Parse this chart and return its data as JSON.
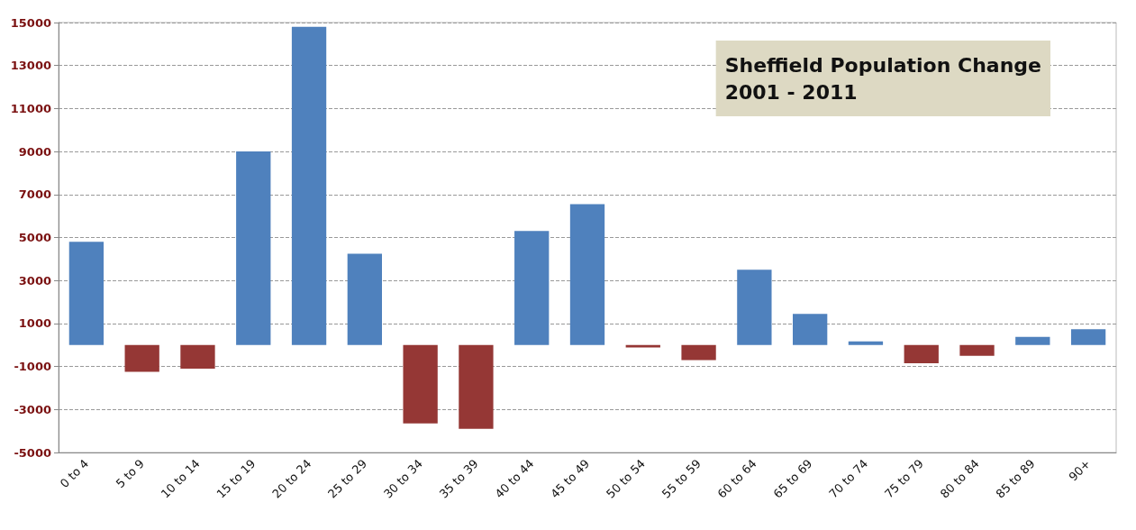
{
  "chart_data": {
    "type": "bar",
    "title": "Sheffield Population Change\n2001 - 2011",
    "categories": [
      "0 to 4",
      "5 to 9",
      "10 to 14",
      "15 to 19",
      "20 to 24",
      "25 to 29",
      "30 to 34",
      "35 to 39",
      "40 to 44",
      "45 to 49",
      "50 to 54",
      "55 to 59",
      "60 to 64",
      "65 to 69",
      "70 to 74",
      "75 to 79",
      "80 to 84",
      "85 to 89",
      "90+"
    ],
    "values": [
      4800,
      -1250,
      -1100,
      9000,
      14800,
      4250,
      -3650,
      -3900,
      5300,
      6550,
      -120,
      -700,
      3500,
      1450,
      170,
      -850,
      -500,
      380,
      730
    ],
    "colors": [
      "#4f81bd",
      "#953735",
      "#953735",
      "#4f81bd",
      "#4f81bd",
      "#4f81bd",
      "#953735",
      "#953735",
      "#4f81bd",
      "#4f81bd",
      "#953735",
      "#953735",
      "#4f81bd",
      "#4f81bd",
      "#4f81bd",
      "#953735",
      "#953735",
      "#4f81bd",
      "#4f81bd"
    ],
    "ylim": [
      -5000,
      15000
    ],
    "yticks": [
      -5000,
      -3000,
      -1000,
      1000,
      3000,
      5000,
      7000,
      9000,
      11000,
      13000,
      15000
    ],
    "grid": "y"
  }
}
